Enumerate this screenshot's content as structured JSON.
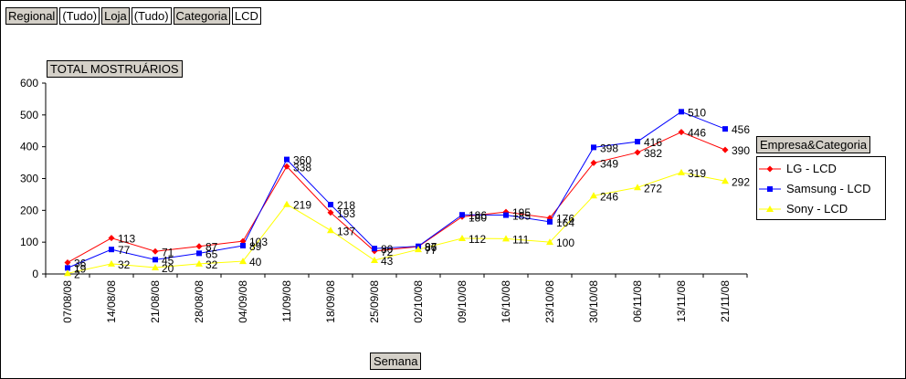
{
  "filters": [
    {
      "label": "Regional",
      "value": "(Tudo)"
    },
    {
      "label": "Loja",
      "value": "(Tudo)"
    },
    {
      "label": "Categoria",
      "value": "LCD"
    }
  ],
  "chart_data": {
    "type": "line",
    "title": "TOTAL MOSTRUÁRIOS",
    "xlabel": "Semana",
    "ylabel": "",
    "ylim": [
      0,
      600
    ],
    "yticks": [
      0,
      100,
      200,
      300,
      400,
      500,
      600
    ],
    "grid": false,
    "legend": {
      "title": "Empresa&Categoria",
      "position": "right"
    },
    "categories": [
      "07/08/08",
      "14/08/08",
      "21/08/08",
      "28/08/08",
      "04/09/08",
      "11/09/08",
      "18/09/08",
      "25/09/08",
      "02/10/08",
      "09/10/08",
      "16/10/08",
      "23/10/08",
      "30/10/08",
      "06/11/08",
      "13/11/08",
      "21/11/08"
    ],
    "series": [
      {
        "name": "LG - LCD",
        "color": "#ff0000",
        "marker": "diamond",
        "values": [
          36,
          113,
          71,
          87,
          103,
          338,
          193,
          72,
          86,
          180,
          195,
          176,
          349,
          382,
          446,
          390
        ]
      },
      {
        "name": "Samsung - LCD",
        "color": "#0000ff",
        "marker": "square",
        "values": [
          19,
          77,
          45,
          65,
          89,
          360,
          218,
          80,
          87,
          186,
          185,
          164,
          398,
          416,
          510,
          456
        ]
      },
      {
        "name": "Sony - LCD",
        "color": "#ffff00",
        "marker": "triangle",
        "values": [
          2,
          32,
          20,
          32,
          40,
          219,
          137,
          43,
          77,
          112,
          111,
          100,
          246,
          272,
          319,
          292
        ]
      }
    ]
  }
}
